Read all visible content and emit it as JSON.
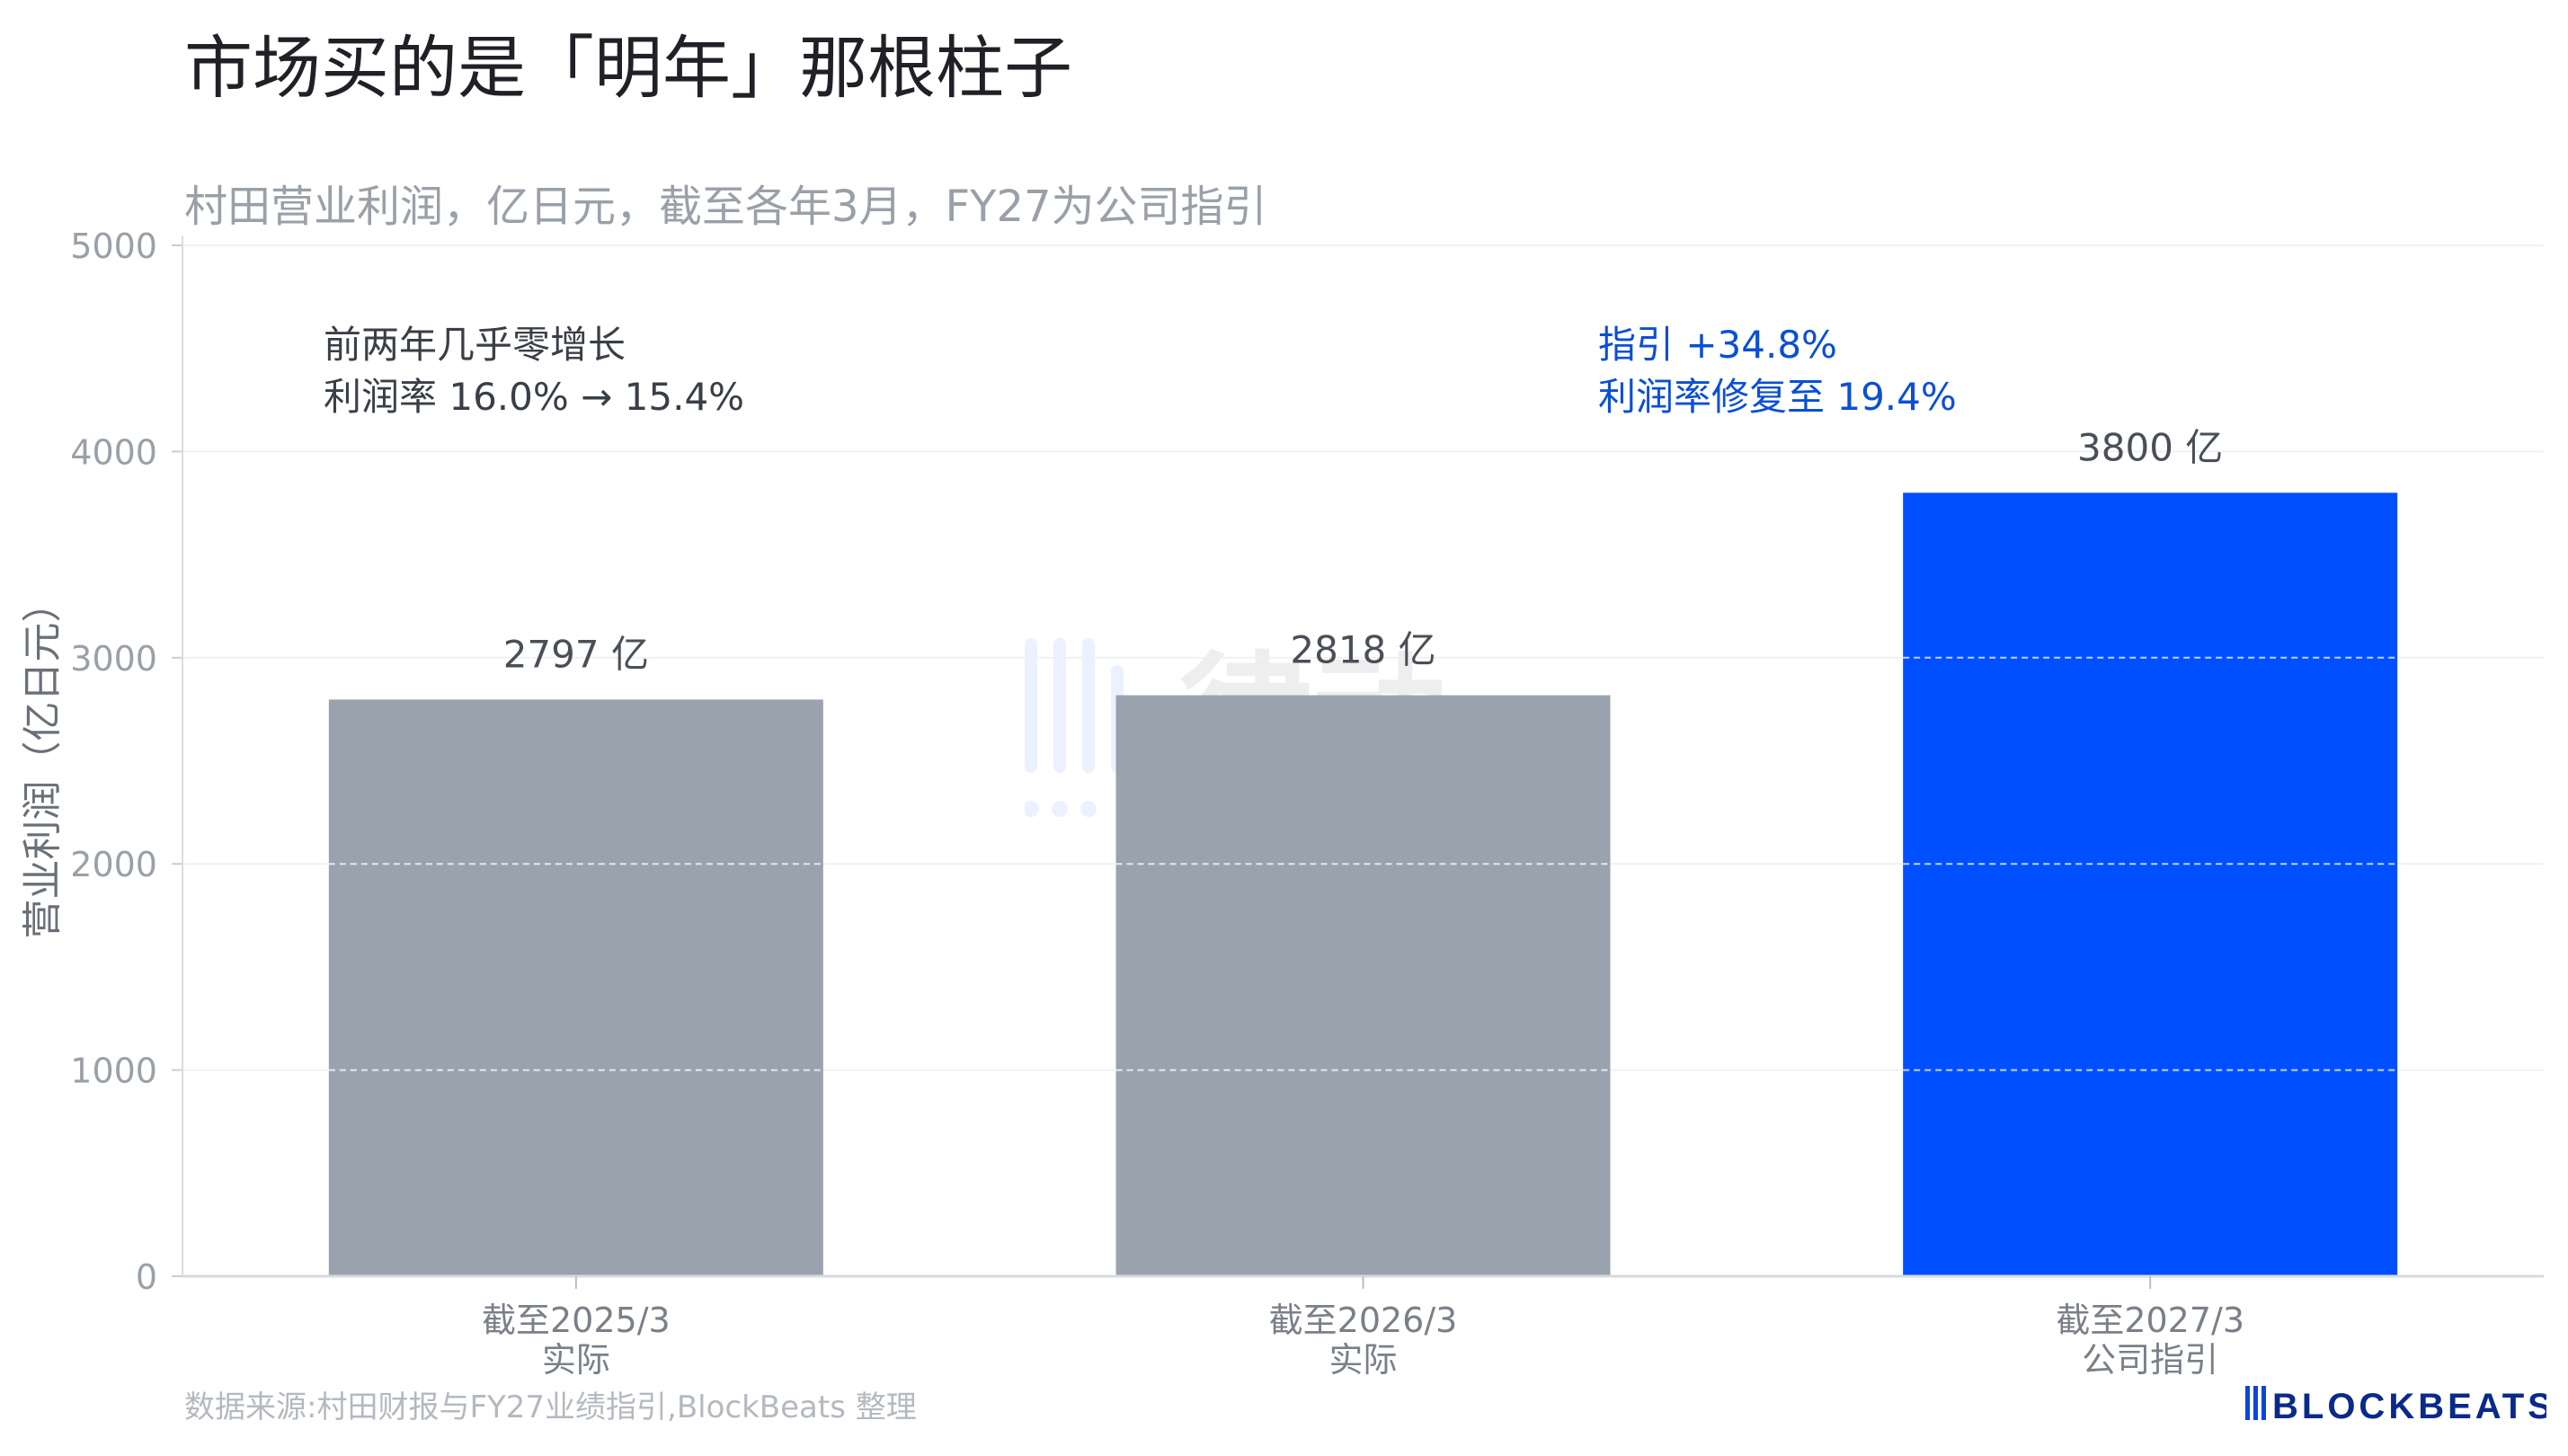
{
  "header": {
    "title": "市场买的是「明年」那根柱子",
    "subtitle": "村田营业利润，亿日元，截至各年3月，FY27为公司指引"
  },
  "footer": {
    "source": "数据来源:村田财报与FY27业绩指引,BlockBeats 整理",
    "logo_text": "BLOCKBEATS"
  },
  "watermark": {
    "text": "律动"
  },
  "colors": {
    "actual": "#9aa2ad",
    "guidance": "#0050ff",
    "annotation_blue": "#0a4fd6",
    "text": "#4a4f57",
    "axis_text": "#9aa0a8"
  },
  "chart_data": {
    "type": "bar",
    "ylabel": "营业利润（亿日元）",
    "xlabel": "",
    "ylim": [
      0,
      5000
    ],
    "yticks": [
      0,
      1000,
      2000,
      3000,
      4000,
      5000
    ],
    "grid": true,
    "categories": [
      {
        "line1": "截至2025/3",
        "line2": "实际"
      },
      {
        "line1": "截至2026/3",
        "line2": "实际"
      },
      {
        "line1": "截至2027/3",
        "line2": "公司指引"
      }
    ],
    "values": [
      2797,
      2818,
      3800
    ],
    "value_labels": [
      "2797 亿",
      "2818 亿",
      "3800 亿"
    ],
    "bar_colors": [
      "#9aa2ad",
      "#9aa2ad",
      "#0050ff"
    ],
    "annotations": [
      {
        "lines": [
          "前两年几乎零增长",
          "利润率 16.0% → 15.4%"
        ],
        "color": "#3a3f47"
      },
      {
        "lines": [
          "指引 +34.8%",
          "利润率修复至 19.4%"
        ],
        "color": "#0a4fd6"
      }
    ]
  }
}
